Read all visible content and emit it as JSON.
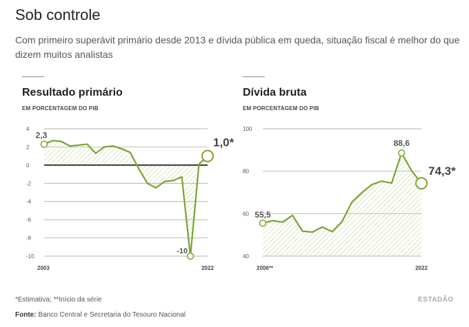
{
  "header": {
    "title": "Sob controle",
    "subtitle": "Com primeiro superávit primário desde 2013 e dívida pública em queda, situação fiscal é melhor do que dizem muitos analistas"
  },
  "footer": {
    "note": "*Estimativa; **Início da série",
    "source_label": "Fonte:",
    "source_text": " Banco Central e Secretaria do Tesouro Nacional",
    "brand": "ESTADÃO"
  },
  "colors": {
    "line": "#7aa22e",
    "hatch": "#b9cf8c",
    "grid": "#999999",
    "zero": "#111111"
  },
  "chart_data": [
    {
      "type": "area",
      "title": "Resultado primário",
      "subtitle": "EM PORCENTAGEM DO PIB",
      "x": [
        2003,
        2004,
        2005,
        2006,
        2007,
        2008,
        2009,
        2010,
        2011,
        2012,
        2013,
        2014,
        2015,
        2016,
        2017,
        2018,
        2019,
        2020,
        2021,
        2022
      ],
      "values": [
        2.3,
        2.7,
        2.6,
        2.1,
        2.2,
        2.3,
        1.3,
        2.0,
        2.1,
        1.8,
        1.4,
        -0.4,
        -2.0,
        -2.5,
        -1.8,
        -1.7,
        -1.3,
        -10,
        0.1,
        1.0
      ],
      "ylim": [
        -10,
        4
      ],
      "yticks": [
        "4",
        "2",
        "0",
        "-2",
        "-4",
        "-6",
        "-8",
        "-10"
      ],
      "xtick_labels": [
        "2003",
        "2022"
      ],
      "annotations": [
        {
          "label": "2,3",
          "index": 0
        },
        {
          "label": "-10",
          "index": 17
        },
        {
          "label": "1,0*",
          "index": 19
        }
      ]
    },
    {
      "type": "area",
      "title": "Dívida bruta",
      "subtitle": "EM PORCENTAGEM DO PIB",
      "x": [
        2006,
        2007,
        2008,
        2009,
        2010,
        2011,
        2012,
        2013,
        2014,
        2015,
        2016,
        2017,
        2018,
        2019,
        2020,
        2021,
        2022
      ],
      "values": [
        55.5,
        56.7,
        56.0,
        59.2,
        51.8,
        51.3,
        53.7,
        51.5,
        56.3,
        65.5,
        69.9,
        73.7,
        75.3,
        74.4,
        88.6,
        80.3,
        74.3
      ],
      "ylim": [
        40,
        100
      ],
      "yticks": [
        "100",
        "80",
        "60",
        "40"
      ],
      "xtick_labels": [
        "2006**",
        "2022"
      ],
      "annotations": [
        {
          "label": "55,5",
          "index": 0
        },
        {
          "label": "88,6",
          "index": 14
        },
        {
          "label": "74,3*",
          "index": 16
        }
      ]
    }
  ]
}
